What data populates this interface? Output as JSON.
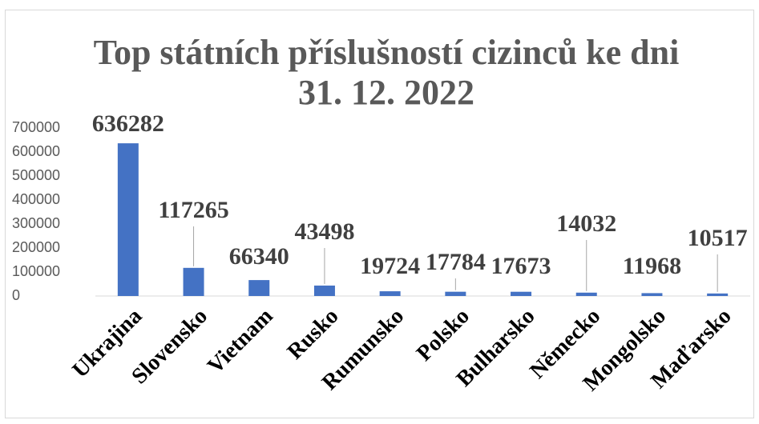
{
  "chart_data": {
    "type": "bar",
    "title": "Top státních příslušností cizinců ke dni 31. 12. 2022",
    "categories": [
      "Ukrajina",
      "Slovensko",
      "Vietnam",
      "Rusko",
      "Rumunsko",
      "Polsko",
      "Bulharsko",
      "Německo",
      "Mongolsko",
      "Maďarsko"
    ],
    "values": [
      636282,
      117265,
      66340,
      43498,
      19724,
      17784,
      17673,
      14032,
      11968,
      10517
    ],
    "color": "#4472c4",
    "ylim": [
      0,
      700000
    ],
    "yticks": [
      0,
      100000,
      200000,
      300000,
      400000,
      500000,
      600000,
      700000
    ],
    "grid": false
  }
}
